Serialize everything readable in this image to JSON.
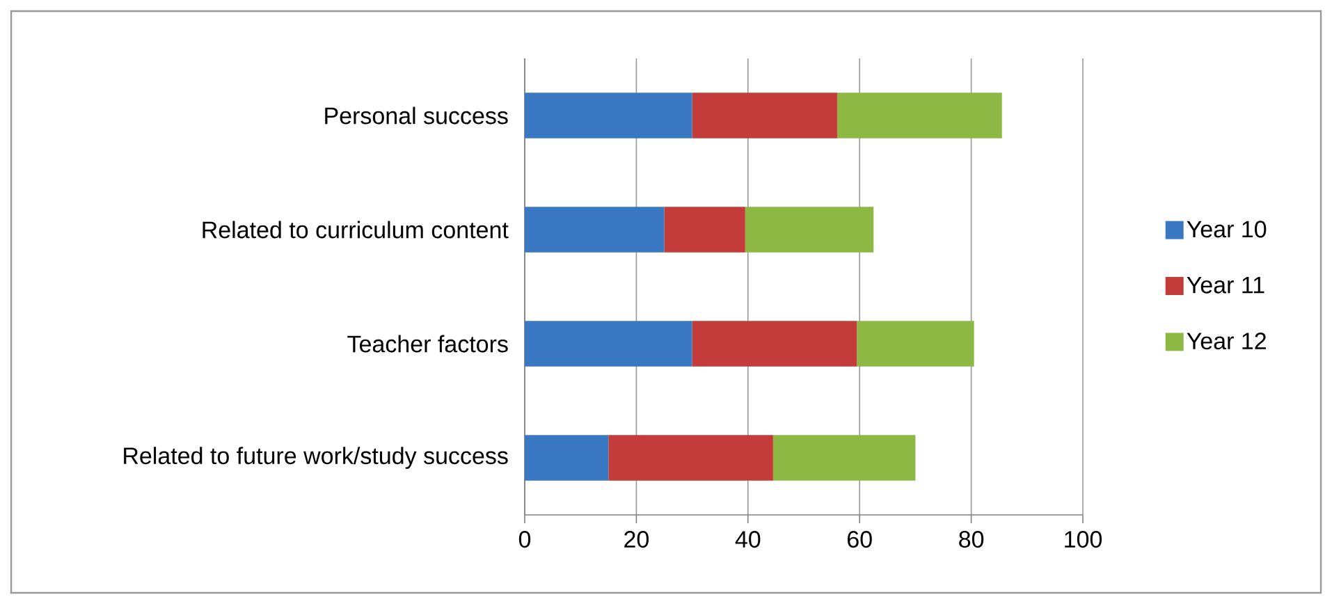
{
  "chart_data": {
    "type": "bar",
    "orientation": "horizontal",
    "stacked": true,
    "categories": [
      "Personal success",
      "Related to curriculum content",
      "Teacher factors",
      "Related to future work/study success"
    ],
    "series": [
      {
        "name": "Year 10",
        "color": "#3a78c3",
        "values": [
          30,
          25,
          30,
          15
        ]
      },
      {
        "name": "Year 11",
        "color": "#c43c3a",
        "values": [
          26,
          14.5,
          29.5,
          29.5
        ]
      },
      {
        "name": "Year 12",
        "color": "#8db843",
        "values": [
          29.5,
          23,
          21,
          25.5
        ]
      }
    ],
    "xlim": [
      0,
      100
    ],
    "xticks": [
      0,
      20,
      40,
      60,
      80,
      100
    ],
    "grid": "x",
    "legend": "right"
  }
}
